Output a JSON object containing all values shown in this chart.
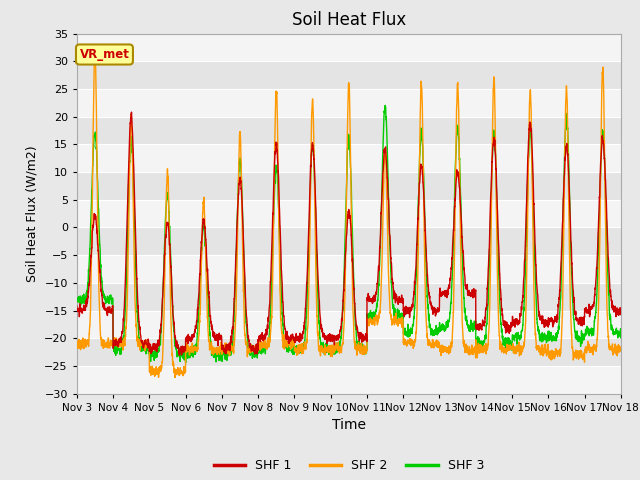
{
  "title": "Soil Heat Flux",
  "ylabel": "Soil Heat Flux (W/m2)",
  "xlabel": "Time",
  "ylim": [
    -30,
    35
  ],
  "yticks": [
    -30,
    -25,
    -20,
    -15,
    -10,
    -5,
    0,
    5,
    10,
    15,
    20,
    25,
    30,
    35
  ],
  "shf1_color": "#cc0000",
  "shf2_color": "#ff9900",
  "shf3_color": "#00cc00",
  "legend_label1": "SHF 1",
  "legend_label2": "SHF 2",
  "legend_label3": "SHF 3",
  "annotation_text": "VR_met",
  "annotation_color": "#cc0000",
  "annotation_bg": "#ffff99",
  "annotation_border": "#aa8800",
  "fig_bg_color": "#e8e8e8",
  "plot_bg_color": "#e8e8e8",
  "band_color_light": "#f0f0f0",
  "band_color_dark": "#dcdcdc",
  "grid_color": "#ffffff",
  "line_width": 1.0,
  "n_days": 15,
  "ppd": 288,
  "xtick_labels": [
    "Nov 3",
    "Nov 4",
    "Nov 5",
    "Nov 6",
    "Nov 7",
    "Nov 8",
    "Nov 9",
    "Nov 10",
    "Nov 11",
    "Nov 12",
    "Nov 13",
    "Nov 14",
    "Nov 15",
    "Nov 16",
    "Nov 17",
    "Nov 18"
  ],
  "day_peak_shf2": [
    32,
    20,
    10,
    5,
    17,
    25,
    23,
    26,
    14,
    26,
    26,
    27,
    25,
    25,
    29
  ],
  "day_peak_shf1": [
    2,
    20,
    1,
    1,
    9,
    15,
    15,
    3,
    14,
    11,
    10,
    16,
    19,
    15,
    16
  ],
  "day_peak_shf3": [
    17,
    16,
    6,
    0,
    12,
    11,
    15,
    16,
    22,
    17,
    18,
    17,
    17,
    20,
    17
  ],
  "day_night_shf1": [
    -15,
    -21,
    -22,
    -20,
    -22,
    -20,
    -20,
    -20,
    -13,
    -15,
    -12,
    -18,
    -17,
    -17,
    -15
  ],
  "day_night_shf2": [
    -21,
    -21,
    -26,
    -22,
    -22,
    -21,
    -22,
    -22,
    -17,
    -21,
    -22,
    -22,
    -22,
    -23,
    -22
  ],
  "day_night_shf3": [
    -13,
    -22,
    -23,
    -23,
    -23,
    -22,
    -22,
    -22,
    -16,
    -19,
    -18,
    -21,
    -20,
    -20,
    -19
  ]
}
